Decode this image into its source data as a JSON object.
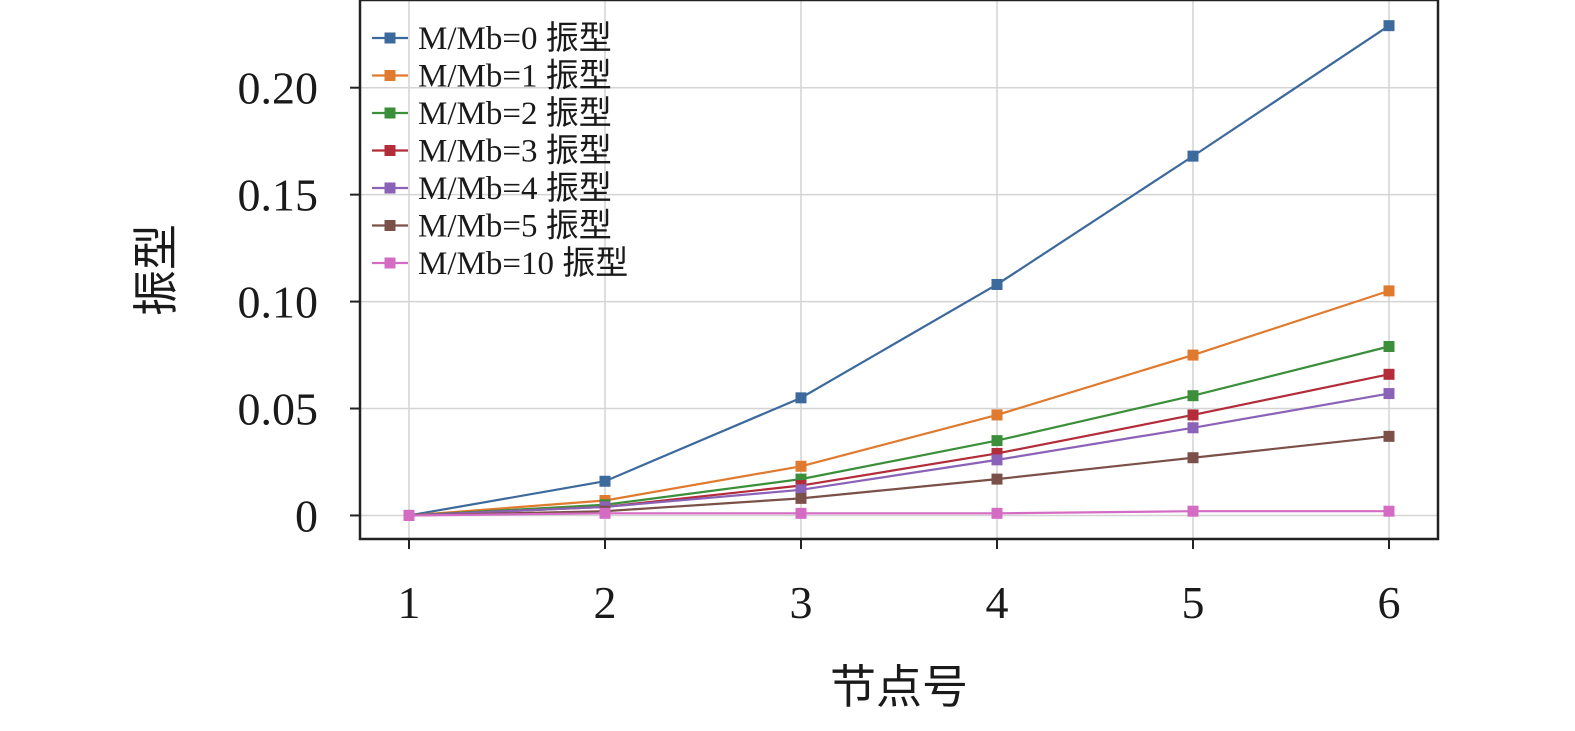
{
  "chart_data": {
    "type": "line",
    "xlabel": "节点号",
    "ylabel": "振型",
    "x": [
      1,
      2,
      3,
      4,
      5,
      6
    ],
    "x_tick_labels": [
      "1",
      "2",
      "3",
      "4",
      "5",
      "6"
    ],
    "xlim": [
      0.75,
      6.25
    ],
    "ylim": [
      -0.011,
      0.241
    ],
    "y_ticks": [
      0,
      0.05,
      0.1,
      0.15,
      0.2
    ],
    "y_tick_labels": [
      "0",
      "0.05",
      "0.10",
      "0.15",
      "0.20"
    ],
    "grid": true,
    "legend_position": "top-left",
    "marker": "square",
    "series": [
      {
        "name": "M/Mb=0 振型",
        "color": "#3d6a9c",
        "values": [
          0,
          0.016,
          0.055,
          0.108,
          0.168,
          0.229
        ]
      },
      {
        "name": "M/Mb=1 振型",
        "color": "#e07a2e",
        "values": [
          0,
          0.007,
          0.023,
          0.047,
          0.075,
          0.105
        ]
      },
      {
        "name": "M/Mb=2 振型",
        "color": "#3c8f3a",
        "values": [
          0,
          0.005,
          0.017,
          0.035,
          0.056,
          0.079
        ]
      },
      {
        "name": "M/Mb=3 振型",
        "color": "#b22c3a",
        "values": [
          0,
          0.004,
          0.014,
          0.029,
          0.047,
          0.066
        ]
      },
      {
        "name": "M/Mb=4 振型",
        "color": "#8a62b8",
        "values": [
          0,
          0.004,
          0.012,
          0.026,
          0.041,
          0.057
        ]
      },
      {
        "name": "M/Mb=5 振型",
        "color": "#7a5048",
        "values": [
          0,
          0.002,
          0.008,
          0.017,
          0.027,
          0.037
        ]
      },
      {
        "name": "M/Mb=10 振型",
        "color": "#d46cc4",
        "values": [
          0,
          0.001,
          0.001,
          0.001,
          0.002,
          0.002
        ]
      }
    ]
  }
}
